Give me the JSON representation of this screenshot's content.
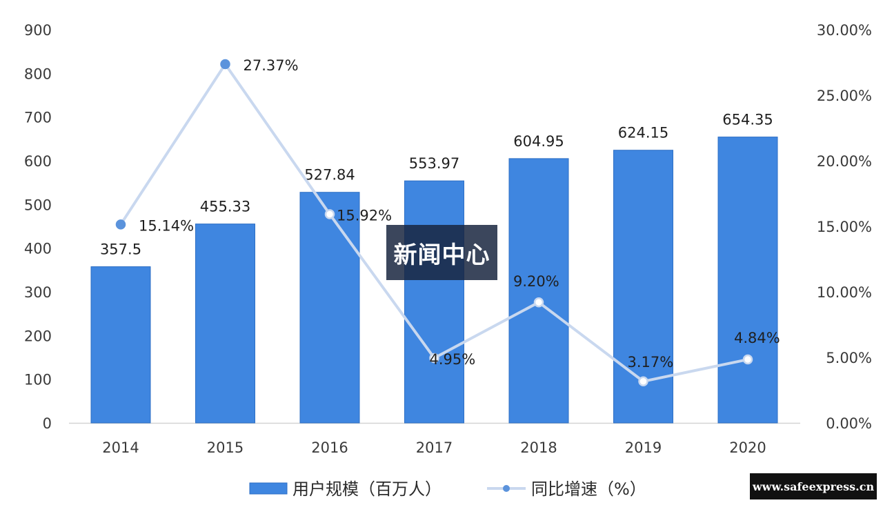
{
  "chart_data": {
    "type": "bar",
    "categories": [
      "2014",
      "2015",
      "2016",
      "2017",
      "2018",
      "2019",
      "2020"
    ],
    "series": [
      {
        "name": "用户规模（百万人）",
        "type": "bar",
        "axis": "left",
        "values": [
          357.5,
          455.33,
          527.84,
          553.97,
          604.95,
          624.15,
          654.35
        ],
        "labels": [
          "357.5",
          "455.33",
          "527.84",
          "553.97",
          "604.95",
          "624.15",
          "654.35"
        ]
      },
      {
        "name": "同比增速（%）",
        "type": "line",
        "axis": "right",
        "values": [
          15.14,
          27.37,
          15.92,
          4.95,
          9.2,
          3.17,
          4.84
        ],
        "labels": [
          "15.14%",
          "27.37%",
          "15.92%",
          "4.95%",
          "9.20%",
          "3.17%",
          "4.84%"
        ]
      }
    ],
    "left_axis": {
      "ylim": [
        0,
        900
      ],
      "ticks": [
        "0",
        "100",
        "200",
        "300",
        "400",
        "500",
        "600",
        "700",
        "800",
        "900"
      ]
    },
    "right_axis": {
      "ylim": [
        0,
        30
      ],
      "ticks": [
        "0.00%",
        "5.00%",
        "10.00%",
        "15.00%",
        "20.00%",
        "25.00%",
        "30.00%"
      ]
    },
    "grid": false,
    "legend_position": "bottom-center",
    "colors": {
      "bar": "#3f86e0",
      "bar_edge": "#2e6fc4",
      "line": "#c9d8ef",
      "point": "#5b93dc"
    }
  },
  "overlay_text": "新闻中心",
  "site_badge": "www.safeexpress.cn"
}
